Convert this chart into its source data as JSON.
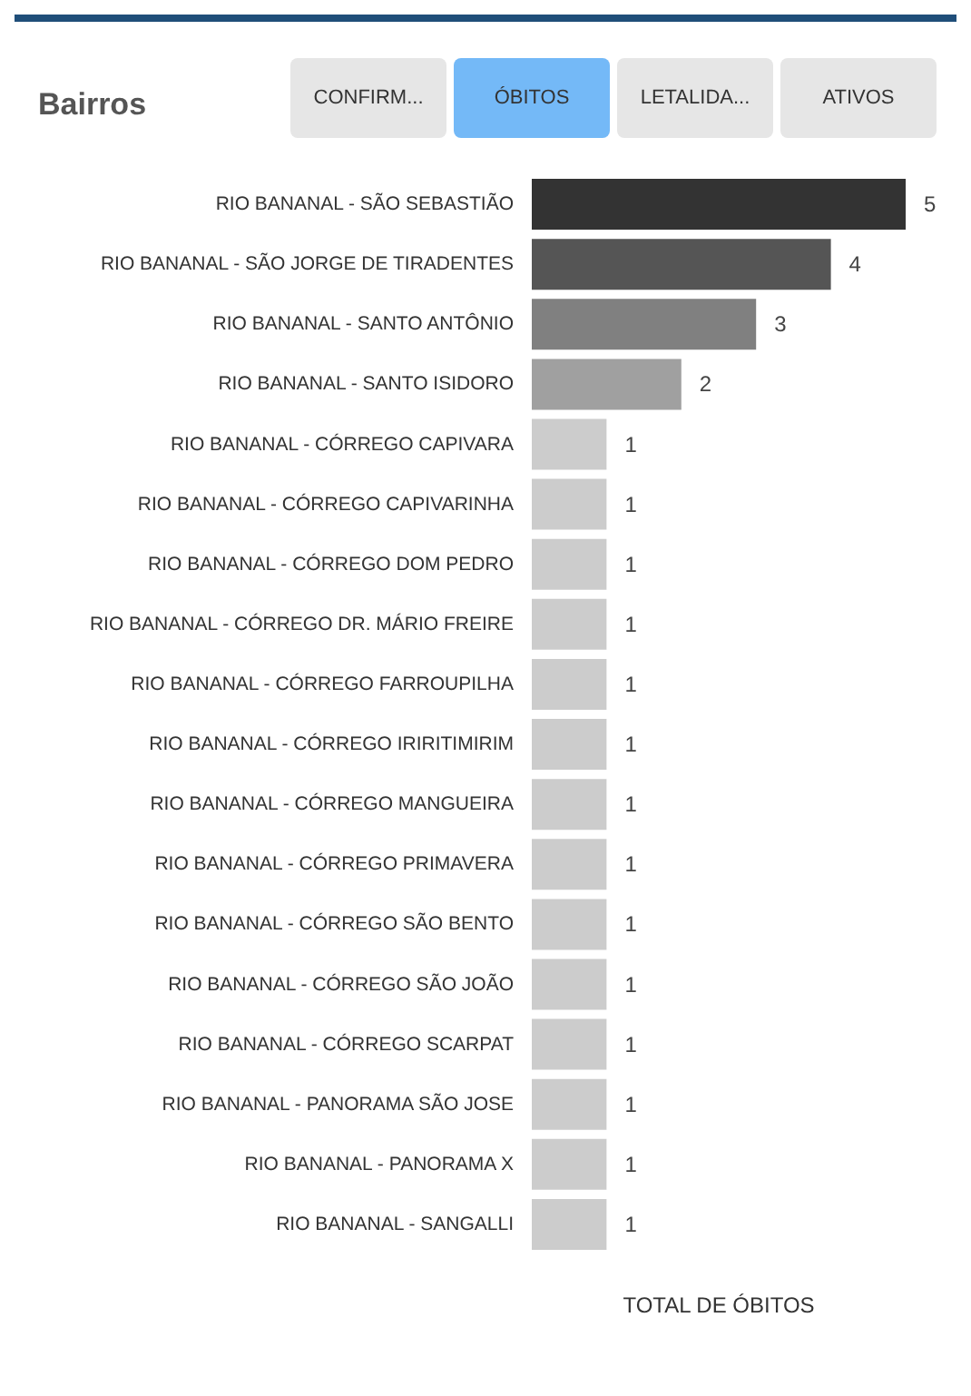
{
  "chart_data": {
    "type": "bar",
    "orientation": "horizontal",
    "title": "Bairros",
    "xlabel": "TOTAL DE ÓBITOS",
    "annotations": [
      "CONFIRM...",
      "ÓBITOS",
      "LETALIDA...",
      "ATIVOS"
    ],
    "categories": [
      "RIO BANANAL - SÃO SEBASTIÃO",
      "RIO BANANAL - SÃO JORGE DE TIRADENTES",
      "RIO BANANAL - SANTO ANTÔNIO",
      "RIO BANANAL - SANTO ISIDORO",
      "RIO BANANAL - CÓRREGO CAPIVARA",
      "RIO BANANAL - CÓRREGO CAPIVARINHA",
      "RIO BANANAL - CÓRREGO DOM PEDRO",
      "RIO BANANAL - CÓRREGO DR. MÁRIO FREIRE",
      "RIO BANANAL - CÓRREGO FARROUPILHA",
      "RIO BANANAL - CÓRREGO IRIRITIMIRIM",
      "RIO BANANAL - CÓRREGO MANGUEIRA",
      "RIO BANANAL - CÓRREGO PRIMAVERA",
      "RIO BANANAL - CÓRREGO SÃO BENTO",
      "RIO BANANAL - CÓRREGO SÃO JOÃO",
      "RIO BANANAL - CÓRREGO SCARPAT",
      "RIO BANANAL - PANORAMA SÃO JOSE",
      "RIO BANANAL - PANORAMA X",
      "RIO BANANAL - SANGALLI"
    ],
    "values": [
      5,
      4,
      3,
      2,
      1,
      1,
      1,
      1,
      1,
      1,
      1,
      1,
      1,
      1,
      1,
      1,
      1,
      1
    ],
    "colors": [
      "#333333",
      "#555555",
      "#808080",
      "#a0a0a0",
      "#cccccc",
      "#cccccc",
      "#cccccc",
      "#cccccc",
      "#cccccc",
      "#cccccc",
      "#cccccc",
      "#cccccc",
      "#cccccc",
      "#cccccc",
      "#cccccc",
      "#cccccc",
      "#cccccc",
      "#cccccc"
    ],
    "data_labels": true,
    "grid": false
  }
}
